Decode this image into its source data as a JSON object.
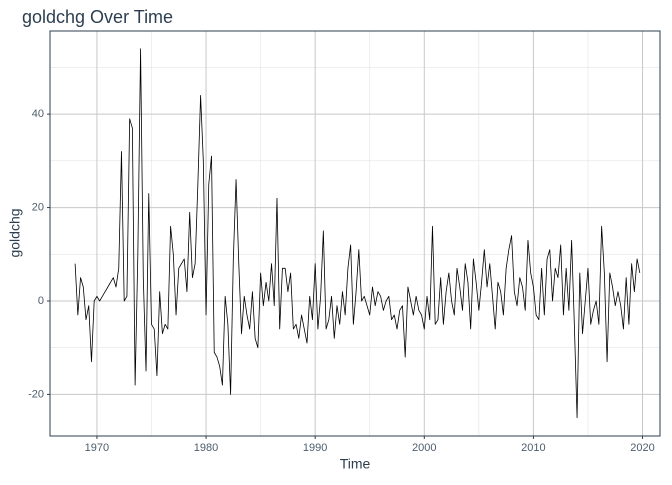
{
  "chart_data": {
    "type": "line",
    "title": "goldchg Over Time",
    "x_label": "Time",
    "y_label": "goldchg",
    "color": "#000000",
    "grid": true,
    "xlim": [
      1965.7,
      2021.6
    ],
    "xticks": [
      1970,
      1980,
      1990,
      2000,
      2010,
      2020
    ],
    "ylim": [
      -28.9,
      57.8
    ],
    "yticks": [
      -20,
      0,
      20,
      40
    ],
    "x": [
      1968,
      1968.25,
      1968.5,
      1968.75,
      1969,
      1969.25,
      1969.5,
      1969.75,
      1970,
      1970.25,
      1970.5,
      1970.75,
      1971,
      1971.25,
      1971.5,
      1971.75,
      1972,
      1972.25,
      1972.5,
      1972.75,
      1973,
      1973.25,
      1973.5,
      1973.75,
      1974,
      1974.25,
      1974.5,
      1974.75,
      1975,
      1975.25,
      1975.5,
      1975.75,
      1976,
      1976.25,
      1976.5,
      1976.75,
      1977,
      1977.25,
      1977.5,
      1977.75,
      1978,
      1978.25,
      1978.5,
      1978.75,
      1979,
      1979.25,
      1979.5,
      1979.75,
      1980,
      1980.25,
      1980.5,
      1980.75,
      1981,
      1981.25,
      1981.5,
      1981.75,
      1982,
      1982.25,
      1982.5,
      1982.75,
      1983,
      1983.25,
      1983.5,
      1983.75,
      1984,
      1984.25,
      1984.5,
      1984.75,
      1985,
      1985.25,
      1985.5,
      1985.75,
      1986,
      1986.25,
      1986.5,
      1986.75,
      1987,
      1987.25,
      1987.5,
      1987.75,
      1988,
      1988.25,
      1988.5,
      1988.75,
      1989,
      1989.25,
      1989.5,
      1989.75,
      1990,
      1990.25,
      1990.5,
      1990.75,
      1991,
      1991.25,
      1991.5,
      1991.75,
      1992,
      1992.25,
      1992.5,
      1992.75,
      1993,
      1993.25,
      1993.5,
      1993.75,
      1994,
      1994.25,
      1994.5,
      1994.75,
      1995,
      1995.25,
      1995.5,
      1995.75,
      1996,
      1996.25,
      1996.5,
      1996.75,
      1997,
      1997.25,
      1997.5,
      1997.75,
      1998,
      1998.25,
      1998.5,
      1998.75,
      1999,
      1999.25,
      1999.5,
      1999.75,
      2000,
      2000.25,
      2000.5,
      2000.75,
      2001,
      2001.25,
      2001.5,
      2001.75,
      2002,
      2002.25,
      2002.5,
      2002.75,
      2003,
      2003.25,
      2003.5,
      2003.75,
      2004,
      2004.25,
      2004.5,
      2004.75,
      2005,
      2005.25,
      2005.5,
      2005.75,
      2006,
      2006.25,
      2006.5,
      2006.75,
      2007,
      2007.25,
      2007.5,
      2007.75,
      2008,
      2008.25,
      2008.5,
      2008.75,
      2009,
      2009.25,
      2009.5,
      2009.75,
      2010,
      2010.25,
      2010.5,
      2010.75,
      2011,
      2011.25,
      2011.5,
      2011.75,
      2012,
      2012.25,
      2012.5,
      2012.75,
      2013,
      2013.25,
      2013.5,
      2013.75,
      2014,
      2014.25,
      2014.5,
      2014.75,
      2015,
      2015.25,
      2015.5,
      2015.75,
      2016,
      2016.25,
      2016.5,
      2016.75,
      2017,
      2017.25,
      2017.5,
      2017.75,
      2018,
      2018.25,
      2018.5,
      2018.75,
      2019,
      2019.25,
      2019.5,
      2019.75
    ],
    "values": [
      8,
      -3,
      5,
      3,
      -4,
      -1,
      -13,
      0,
      1,
      0,
      1,
      2,
      3,
      4,
      5,
      3,
      7,
      32,
      0,
      1,
      39,
      37,
      -18,
      10,
      54,
      5,
      -15,
      23,
      -5,
      -6,
      -16,
      2,
      -7,
      -5,
      -6,
      16,
      10,
      -3,
      7,
      8,
      9,
      2,
      19,
      5,
      8,
      25,
      44,
      30,
      -3,
      25,
      31,
      -11,
      -12,
      -14,
      -18,
      1,
      -5,
      -20,
      9,
      26,
      8,
      -7,
      1,
      -3,
      -6,
      2,
      -8,
      -10,
      6,
      -1,
      4,
      0,
      8,
      -1,
      22,
      -6,
      7,
      7,
      2,
      6,
      -6,
      -5,
      -8,
      -3,
      -6,
      -9,
      1,
      -4,
      8,
      -6,
      1,
      15,
      -6,
      -4,
      1,
      -8,
      -1,
      -5,
      2,
      -3,
      7,
      12,
      -5,
      2,
      11,
      0,
      1,
      -1,
      -3,
      3,
      -1,
      2,
      1,
      -2,
      0,
      1,
      -4,
      -3,
      -6,
      -2,
      -1,
      -12,
      3,
      0,
      -3,
      1,
      -2,
      -3,
      -6,
      1,
      -4,
      16,
      -5,
      -4,
      5,
      -5,
      2,
      6,
      0,
      -3,
      7,
      3,
      -2,
      8,
      4,
      -6,
      9,
      4,
      -2,
      4,
      11,
      3,
      8,
      1,
      -6,
      4,
      2,
      -3,
      7,
      11,
      14,
      2,
      -1,
      5,
      3,
      -2,
      13,
      6,
      3,
      -3,
      -4,
      7,
      -3,
      9,
      11,
      0,
      7,
      5,
      12,
      -3,
      7,
      -2,
      13,
      -5,
      -25,
      6,
      -7,
      0,
      7,
      -5,
      -2,
      0,
      -5,
      16,
      6,
      -13,
      6,
      3,
      -1,
      2,
      -1,
      -6,
      5,
      -5,
      8,
      2,
      9,
      6
    ]
  }
}
